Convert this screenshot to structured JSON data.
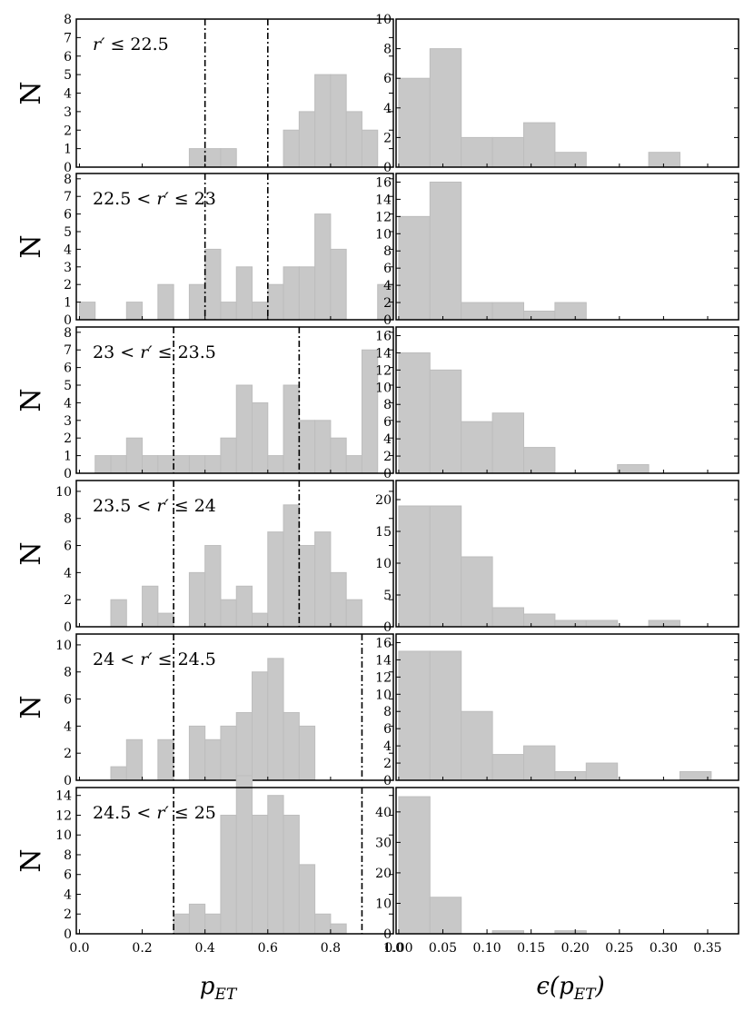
{
  "chart_data": [
    {
      "type": "bar",
      "panel": "left",
      "annotation": {
        "pre": "",
        "mid": "≤ 22.5"
      },
      "ylabel": "N",
      "ylim": [
        0,
        8
      ],
      "yticks": [
        0,
        1,
        2,
        3,
        4,
        5,
        6,
        7,
        8
      ],
      "xlim": [
        -0.01,
        1.0
      ],
      "bin_start": 0,
      "bin_width": 0.05,
      "values": [
        0,
        0,
        0,
        0,
        0,
        0,
        0,
        1,
        1,
        1,
        0,
        0,
        0,
        2,
        3,
        5,
        5,
        3,
        2,
        0
      ],
      "vlines": [
        0.4,
        0.6
      ]
    },
    {
      "type": "bar",
      "panel": "right",
      "ylim": [
        0,
        10
      ],
      "yticks": [
        0,
        2,
        4,
        6,
        8,
        10
      ],
      "xlim": [
        -0.003,
        0.385
      ],
      "bin_start": 0,
      "bin_width": 0.0354,
      "values": [
        6,
        8,
        2,
        2,
        3,
        1,
        0,
        0,
        1,
        0
      ]
    },
    {
      "type": "bar",
      "panel": "left",
      "annotation": {
        "pre": "22.5 <",
        "mid": "≤ 23"
      },
      "ylabel": "N",
      "ylim": [
        0,
        8.3
      ],
      "yticks": [
        0,
        1,
        2,
        3,
        4,
        5,
        6,
        7,
        8
      ],
      "xlim": [
        -0.01,
        1.0
      ],
      "bin_start": 0,
      "bin_width": 0.05,
      "values": [
        1,
        0,
        0,
        1,
        0,
        2,
        0,
        2,
        4,
        1,
        3,
        1,
        2,
        3,
        3,
        6,
        4,
        0,
        0,
        2
      ],
      "vlines": [
        0.4,
        0.6
      ]
    },
    {
      "type": "bar",
      "panel": "right",
      "ylim": [
        0,
        17
      ],
      "yticks": [
        0,
        2,
        4,
        6,
        8,
        10,
        12,
        14,
        16
      ],
      "xlim": [
        -0.003,
        0.385
      ],
      "bin_start": 0,
      "bin_width": 0.0354,
      "values": [
        12,
        16,
        2,
        2,
        1,
        2
      ]
    },
    {
      "type": "bar",
      "panel": "left",
      "annotation": {
        "pre": "23 <",
        "mid": "≤ 23.5"
      },
      "ylabel": "N",
      "ylim": [
        0,
        8.3
      ],
      "yticks": [
        0,
        1,
        2,
        3,
        4,
        5,
        6,
        7,
        8
      ],
      "xlim": [
        -0.01,
        1.0
      ],
      "bin_start": 0,
      "bin_width": 0.05,
      "values": [
        0,
        1,
        1,
        2,
        1,
        1,
        1,
        1,
        1,
        2,
        5,
        4,
        1,
        5,
        3,
        3,
        2,
        1,
        7,
        0
      ],
      "vlines": [
        0.3,
        0.7
      ]
    },
    {
      "type": "bar",
      "panel": "right",
      "ylim": [
        0,
        17
      ],
      "yticks": [
        0,
        2,
        4,
        6,
        8,
        10,
        12,
        14,
        16
      ],
      "xlim": [
        -0.003,
        0.385
      ],
      "bin_start": 0,
      "bin_width": 0.0354,
      "values": [
        14,
        12,
        6,
        7,
        3,
        0,
        0,
        1
      ]
    },
    {
      "type": "bar",
      "panel": "left",
      "annotation": {
        "pre": "23.5 <",
        "mid": "≤ 24"
      },
      "ylabel": "N",
      "ylim": [
        0,
        10.8
      ],
      "yticks": [
        0,
        2,
        4,
        6,
        8,
        10
      ],
      "xlim": [
        -0.01,
        1.0
      ],
      "bin_start": 0,
      "bin_width": 0.05,
      "values": [
        0,
        0,
        2,
        0,
        3,
        1,
        0,
        4,
        6,
        2,
        3,
        1,
        7,
        9,
        6,
        7,
        4,
        2,
        0,
        0
      ],
      "vlines": [
        0.3,
        0.7
      ]
    },
    {
      "type": "bar",
      "panel": "right",
      "ylim": [
        0,
        23
      ],
      "yticks": [
        0,
        5,
        10,
        15,
        20
      ],
      "xlim": [
        -0.003,
        0.385
      ],
      "bin_start": 0,
      "bin_width": 0.0354,
      "values": [
        19,
        19,
        11,
        3,
        2,
        1,
        1,
        0,
        1
      ]
    },
    {
      "type": "bar",
      "panel": "left",
      "annotation": {
        "pre": "24 <",
        "mid": "≤ 24.5"
      },
      "ylabel": "N",
      "ylim": [
        0,
        10.8
      ],
      "yticks": [
        0,
        2,
        4,
        6,
        8,
        10
      ],
      "xlim": [
        -0.01,
        1.0
      ],
      "bin_start": 0,
      "bin_width": 0.05,
      "values": [
        0,
        0,
        1,
        3,
        0,
        3,
        0,
        4,
        3,
        4,
        5,
        8,
        9,
        5,
        4,
        0,
        0,
        0,
        0,
        0
      ],
      "vlines": [
        0.3,
        0.9
      ]
    },
    {
      "type": "bar",
      "panel": "right",
      "ylim": [
        0,
        17
      ],
      "yticks": [
        0,
        2,
        4,
        6,
        8,
        10,
        12,
        14,
        16
      ],
      "xlim": [
        -0.003,
        0.385
      ],
      "bin_start": 0,
      "bin_width": 0.0354,
      "values": [
        15,
        15,
        8,
        3,
        4,
        1,
        2,
        0,
        0,
        1
      ]
    },
    {
      "type": "bar",
      "panel": "left",
      "annotation": {
        "pre": "24.5 <",
        "mid": "≤ 25"
      },
      "ylabel": "N",
      "ylim": [
        0,
        14.8
      ],
      "yticks": [
        0,
        2,
        4,
        6,
        8,
        10,
        12,
        14
      ],
      "xlim": [
        -0.01,
        1.0
      ],
      "bin_start": 0,
      "bin_width": 0.05,
      "values": [
        0,
        0,
        0,
        0,
        0,
        0,
        2,
        3,
        2,
        12,
        16,
        12,
        14,
        12,
        7,
        2,
        1,
        0,
        0,
        0
      ],
      "vlines": [
        0.3,
        0.9
      ],
      "xticks": [
        "0.0",
        "0.2",
        "0.4",
        "0.6",
        "0.8",
        "1.0"
      ],
      "xtick_values": [
        0,
        0.2,
        0.4,
        0.6,
        0.8,
        1.0
      ]
    },
    {
      "type": "bar",
      "panel": "right",
      "ylim": [
        0,
        48
      ],
      "yticks": [
        0,
        10,
        20,
        30,
        40
      ],
      "xlim": [
        -0.003,
        0.385
      ],
      "bin_start": 0,
      "bin_width": 0.0354,
      "values": [
        45,
        12,
        0,
        1,
        0,
        1
      ],
      "xticks": [
        "0.00",
        "0.05",
        "0.10",
        "0.15",
        "0.20",
        "0.25",
        "0.30",
        "0.35"
      ],
      "xtick_values": [
        0,
        0.05,
        0.1,
        0.15,
        0.2,
        0.25,
        0.3,
        0.35
      ]
    }
  ],
  "labels": {
    "x_left": "p",
    "x_left_sub": "ET",
    "x_right": "ϵ(p",
    "x_right_sub": "ET",
    "x_right_close": ")",
    "r_symbol": "r′"
  }
}
